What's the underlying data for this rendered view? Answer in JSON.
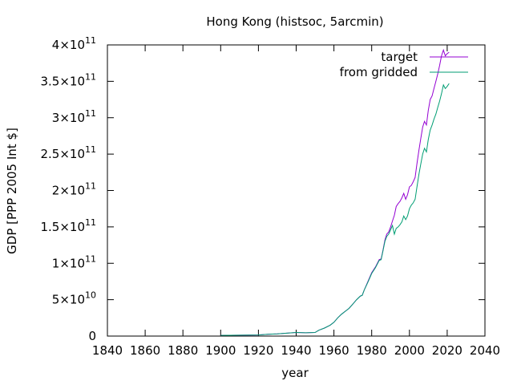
{
  "chart_data": {
    "type": "line",
    "title": "Hong Kong (histsoc, 5arcmin)",
    "xlabel": "year",
    "ylabel": "GDP [PPP 2005 Int $]",
    "xlim": [
      1840,
      2040
    ],
    "ylim": [
      0,
      400000000000
    ],
    "x_ticks": [
      1840,
      1860,
      1880,
      1900,
      1920,
      1940,
      1960,
      1980,
      2000,
      2020,
      2040
    ],
    "x_tick_labels": [
      "1840",
      "1860",
      "1880",
      "1900",
      "1920",
      "1940",
      "1960",
      "1980",
      "2000",
      "2020",
      "2040"
    ],
    "y_ticks": [
      {
        "value": 0,
        "mantissa": "0",
        "exponent": ""
      },
      {
        "value": 50000000000,
        "mantissa": "5×10",
        "exponent": "10"
      },
      {
        "value": 100000000000,
        "mantissa": "1×10",
        "exponent": "11"
      },
      {
        "value": 150000000000,
        "mantissa": "1.5×10",
        "exponent": "11"
      },
      {
        "value": 200000000000,
        "mantissa": "2×10",
        "exponent": "11"
      },
      {
        "value": 250000000000,
        "mantissa": "2.5×10",
        "exponent": "11"
      },
      {
        "value": 300000000000,
        "mantissa": "3×10",
        "exponent": "11"
      },
      {
        "value": 350000000000,
        "mantissa": "3.5×10",
        "exponent": "11"
      },
      {
        "value": 400000000000,
        "mantissa": "4×10",
        "exponent": "11"
      }
    ],
    "legend_position": "top-right",
    "grid": false,
    "series": [
      {
        "name": "target",
        "color": "#9400d3",
        "points": [
          [
            1900,
            1000000000
          ],
          [
            1910,
            1200000000
          ],
          [
            1920,
            1500000000
          ],
          [
            1925,
            2500000000
          ],
          [
            1930,
            3000000000
          ],
          [
            1935,
            4000000000
          ],
          [
            1940,
            5000000000
          ],
          [
            1945,
            4500000000
          ],
          [
            1950,
            5000000000
          ],
          [
            1952,
            8000000000
          ],
          [
            1955,
            11000000000
          ],
          [
            1958,
            15000000000
          ],
          [
            1960,
            19000000000
          ],
          [
            1962,
            25000000000
          ],
          [
            1964,
            30000000000
          ],
          [
            1966,
            34000000000
          ],
          [
            1968,
            38000000000
          ],
          [
            1970,
            44000000000
          ],
          [
            1972,
            50000000000
          ],
          [
            1974,
            55000000000
          ],
          [
            1975,
            56000000000
          ],
          [
            1976,
            63000000000
          ],
          [
            1978,
            75000000000
          ],
          [
            1980,
            87000000000
          ],
          [
            1982,
            95000000000
          ],
          [
            1984,
            105000000000
          ],
          [
            1985,
            106000000000
          ],
          [
            1986,
            118000000000
          ],
          [
            1987,
            132000000000
          ],
          [
            1988,
            140000000000
          ],
          [
            1989,
            143000000000
          ],
          [
            1990,
            150000000000
          ],
          [
            1991,
            158000000000
          ],
          [
            1992,
            166000000000
          ],
          [
            1993,
            178000000000
          ],
          [
            1994,
            182000000000
          ],
          [
            1995,
            185000000000
          ],
          [
            1996,
            190000000000
          ],
          [
            1997,
            196000000000
          ],
          [
            1998,
            188000000000
          ],
          [
            1999,
            194000000000
          ],
          [
            2000,
            205000000000
          ],
          [
            2001,
            207000000000
          ],
          [
            2002,
            212000000000
          ],
          [
            2003,
            218000000000
          ],
          [
            2004,
            237000000000
          ],
          [
            2005,
            255000000000
          ],
          [
            2006,
            271000000000
          ],
          [
            2007,
            287000000000
          ],
          [
            2008,
            295000000000
          ],
          [
            2009,
            290000000000
          ],
          [
            2010,
            310000000000
          ],
          [
            2011,
            325000000000
          ],
          [
            2012,
            330000000000
          ],
          [
            2013,
            340000000000
          ],
          [
            2014,
            350000000000
          ],
          [
            2015,
            360000000000
          ],
          [
            2016,
            372000000000
          ],
          [
            2017,
            385000000000
          ],
          [
            2018,
            393000000000
          ],
          [
            2019,
            385000000000
          ],
          [
            2020,
            388000000000
          ],
          [
            2021,
            390000000000
          ]
        ]
      },
      {
        "name": "from gridded",
        "color": "#009e73",
        "points": [
          [
            1900,
            1000000000
          ],
          [
            1910,
            1200000000
          ],
          [
            1920,
            1500000000
          ],
          [
            1925,
            2500000000
          ],
          [
            1930,
            3000000000
          ],
          [
            1935,
            4000000000
          ],
          [
            1940,
            5000000000
          ],
          [
            1945,
            4500000000
          ],
          [
            1950,
            5000000000
          ],
          [
            1952,
            8000000000
          ],
          [
            1955,
            11000000000
          ],
          [
            1958,
            15000000000
          ],
          [
            1960,
            19000000000
          ],
          [
            1962,
            25000000000
          ],
          [
            1964,
            30000000000
          ],
          [
            1966,
            34000000000
          ],
          [
            1968,
            38000000000
          ],
          [
            1970,
            44000000000
          ],
          [
            1972,
            50000000000
          ],
          [
            1974,
            55000000000
          ],
          [
            1975,
            56000000000
          ],
          [
            1976,
            63000000000
          ],
          [
            1978,
            74000000000
          ],
          [
            1980,
            86000000000
          ],
          [
            1982,
            94000000000
          ],
          [
            1984,
            104000000000
          ],
          [
            1985,
            105000000000
          ],
          [
            1986,
            117000000000
          ],
          [
            1987,
            130000000000
          ],
          [
            1988,
            137000000000
          ],
          [
            1989,
            140000000000
          ],
          [
            1990,
            146000000000
          ],
          [
            1991,
            152000000000
          ],
          [
            1992,
            140000000000
          ],
          [
            1993,
            148000000000
          ],
          [
            1994,
            150000000000
          ],
          [
            1995,
            153000000000
          ],
          [
            1996,
            157000000000
          ],
          [
            1997,
            165000000000
          ],
          [
            1998,
            160000000000
          ],
          [
            1999,
            165000000000
          ],
          [
            2000,
            175000000000
          ],
          [
            2001,
            180000000000
          ],
          [
            2002,
            183000000000
          ],
          [
            2003,
            188000000000
          ],
          [
            2004,
            205000000000
          ],
          [
            2005,
            222000000000
          ],
          [
            2006,
            236000000000
          ],
          [
            2007,
            250000000000
          ],
          [
            2008,
            258000000000
          ],
          [
            2009,
            253000000000
          ],
          [
            2010,
            270000000000
          ],
          [
            2011,
            283000000000
          ],
          [
            2012,
            290000000000
          ],
          [
            2013,
            298000000000
          ],
          [
            2014,
            305000000000
          ],
          [
            2015,
            314000000000
          ],
          [
            2016,
            323000000000
          ],
          [
            2017,
            333000000000
          ],
          [
            2018,
            345000000000
          ],
          [
            2019,
            340000000000
          ],
          [
            2020,
            343000000000
          ],
          [
            2021,
            347000000000
          ]
        ]
      }
    ]
  }
}
